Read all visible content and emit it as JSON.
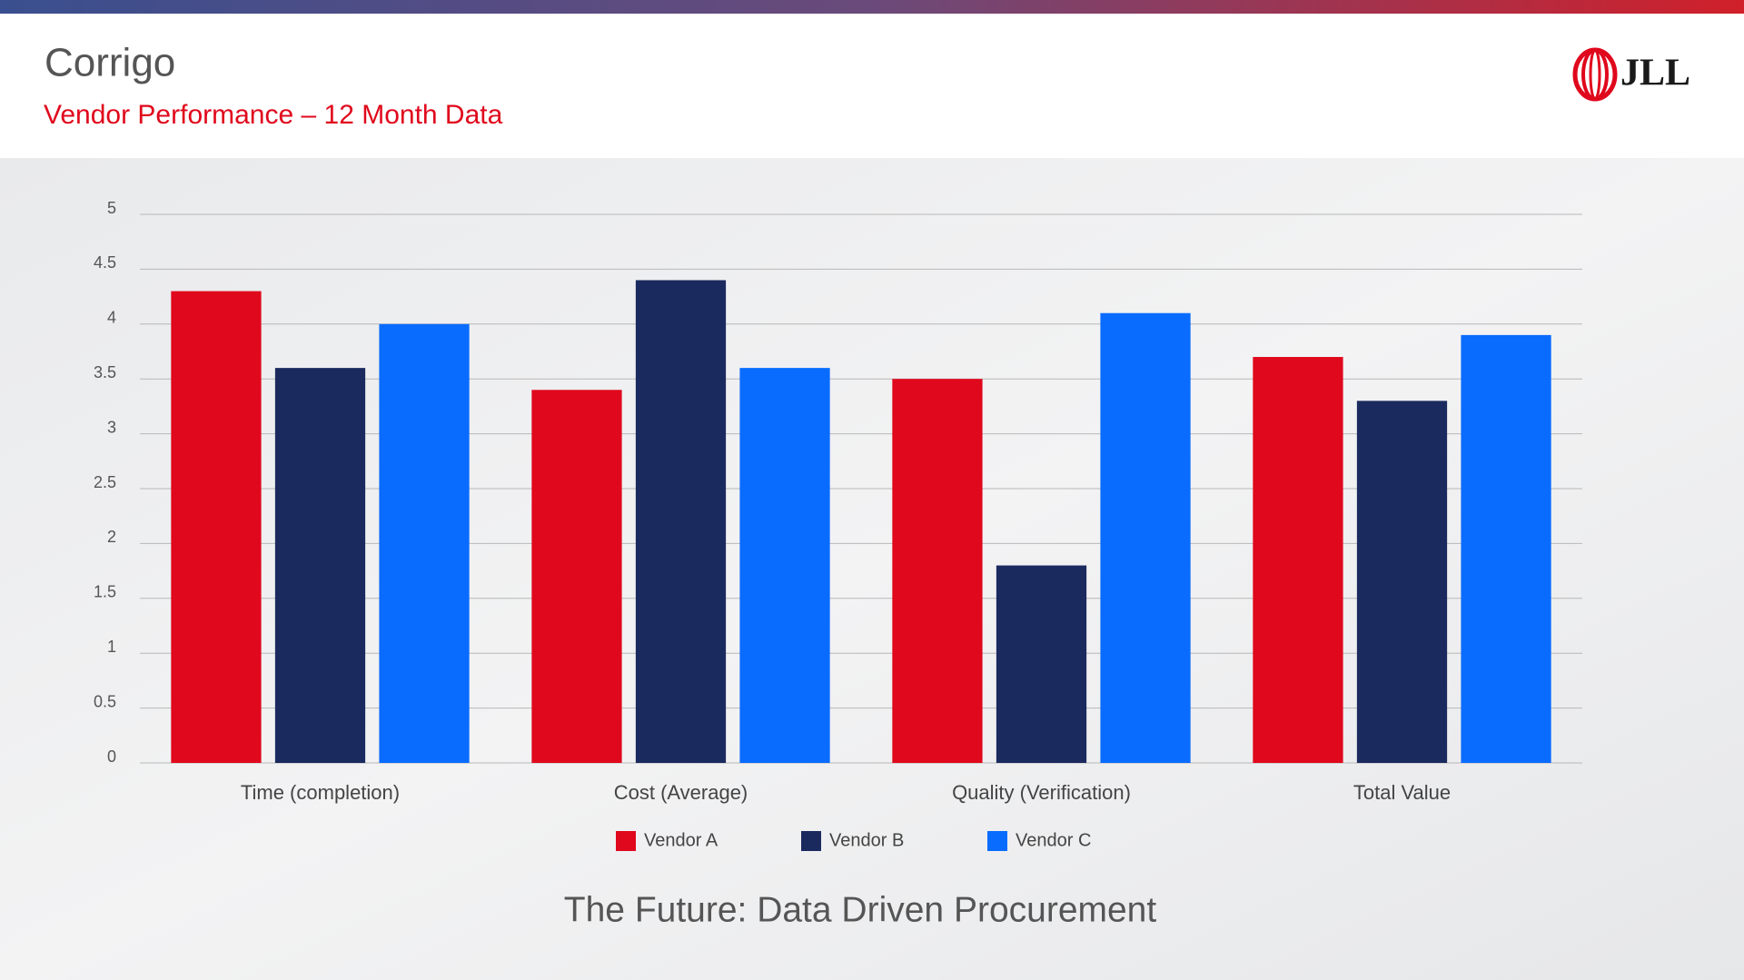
{
  "header": {
    "title": "Corrigo",
    "subtitle": "Vendor Performance – 12 Month Data",
    "logo": "JLL"
  },
  "chart_data": {
    "type": "bar",
    "categories": [
      "Time (completion)",
      "Cost (Average)",
      "Quality (Verification)",
      "Total Value"
    ],
    "series": [
      {
        "name": "Vendor A",
        "color": "#e0081c",
        "values": [
          4.3,
          3.4,
          3.5,
          3.7
        ]
      },
      {
        "name": "Vendor B",
        "color": "#1b2a5e",
        "values": [
          3.6,
          4.4,
          1.8,
          3.3
        ]
      },
      {
        "name": "Vendor C",
        "color": "#0a6cff",
        "values": [
          4.0,
          3.6,
          4.1,
          3.9
        ]
      }
    ],
    "ylim": [
      0,
      5
    ],
    "yticks": [
      0,
      0.5,
      1,
      1.5,
      2,
      2.5,
      3,
      3.5,
      4,
      4.5,
      5
    ],
    "grid": true,
    "legend": "bottom"
  },
  "footer": {
    "caption": "The Future: Data Driven Procurement"
  }
}
